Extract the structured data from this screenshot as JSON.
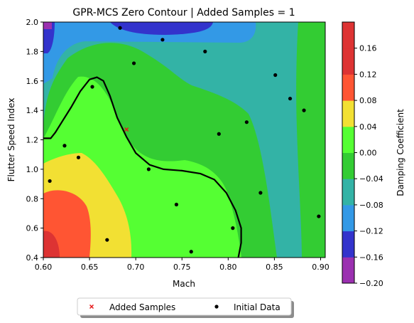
{
  "chart_data": {
    "type": "contour",
    "title": "GPR-MCS Zero Contour | Added Samples = 1",
    "xlabel": "Mach",
    "ylabel": "Flutter Speed Index",
    "xlim": [
      0.6,
      0.905
    ],
    "ylim": [
      0.4,
      2.0
    ],
    "xticks": [
      "0.60",
      "0.65",
      "0.70",
      "0.75",
      "0.80",
      "0.85",
      "0.90"
    ],
    "yticks": [
      "0.4",
      "0.6",
      "0.8",
      "1.0",
      "1.2",
      "1.4",
      "1.6",
      "1.8",
      "2.0"
    ],
    "colorbar": {
      "label": "Damping Coefficient",
      "levels": [
        -0.2,
        -0.16,
        -0.12,
        -0.08,
        -0.04,
        0.0,
        0.04,
        0.08,
        0.12,
        0.16
      ],
      "ticks": [
        "−0.20",
        "−0.16",
        "−0.12",
        "−0.08",
        "−0.04",
        "0.00",
        "0.04",
        "0.08",
        "0.12",
        "0.16"
      ],
      "colors": [
        "#9b30b0",
        "#3333cc",
        "#3399e6",
        "#33b3a6",
        "#33cc33",
        "#55ff33",
        "#f2e033",
        "#ff5533",
        "#dd3333"
      ]
    },
    "zero_contour": [
      [
        0.6,
        1.21
      ],
      [
        0.608,
        1.21
      ],
      [
        0.613,
        1.25
      ],
      [
        0.62,
        1.32
      ],
      [
        0.63,
        1.42
      ],
      [
        0.64,
        1.53
      ],
      [
        0.65,
        1.61
      ],
      [
        0.658,
        1.625
      ],
      [
        0.665,
        1.6
      ],
      [
        0.672,
        1.5
      ],
      [
        0.68,
        1.35
      ],
      [
        0.69,
        1.22
      ],
      [
        0.7,
        1.11
      ],
      [
        0.715,
        1.03
      ],
      [
        0.73,
        1.0
      ],
      [
        0.75,
        0.99
      ],
      [
        0.77,
        0.97
      ],
      [
        0.785,
        0.93
      ],
      [
        0.798,
        0.84
      ],
      [
        0.808,
        0.72
      ],
      [
        0.814,
        0.6
      ],
      [
        0.814,
        0.5
      ],
      [
        0.811,
        0.4
      ]
    ],
    "series": [
      {
        "name": "Added Samples",
        "marker": "x",
        "color": "#e6191a",
        "points": [
          [
            0.69,
            1.27
          ]
        ]
      },
      {
        "name": "Initial Data",
        "marker": "o",
        "color": "#000000",
        "points": [
          [
            0.683,
            1.96
          ],
          [
            0.729,
            1.88
          ],
          [
            0.775,
            1.8
          ],
          [
            0.698,
            1.72
          ],
          [
            0.851,
            1.64
          ],
          [
            0.653,
            1.56
          ],
          [
            0.867,
            1.48
          ],
          [
            0.882,
            1.4
          ],
          [
            0.82,
            1.32
          ],
          [
            0.79,
            1.24
          ],
          [
            0.623,
            1.16
          ],
          [
            0.638,
            1.08
          ],
          [
            0.714,
            1.0
          ],
          [
            0.607,
            0.92
          ],
          [
            0.835,
            0.84
          ],
          [
            0.744,
            0.76
          ],
          [
            0.898,
            0.68
          ],
          [
            0.805,
            0.6
          ],
          [
            0.669,
            0.52
          ],
          [
            0.76,
            0.44
          ]
        ]
      }
    ],
    "legend": {
      "position": "bottom-center",
      "entries": [
        "Added Samples",
        "Initial Data"
      ]
    }
  }
}
